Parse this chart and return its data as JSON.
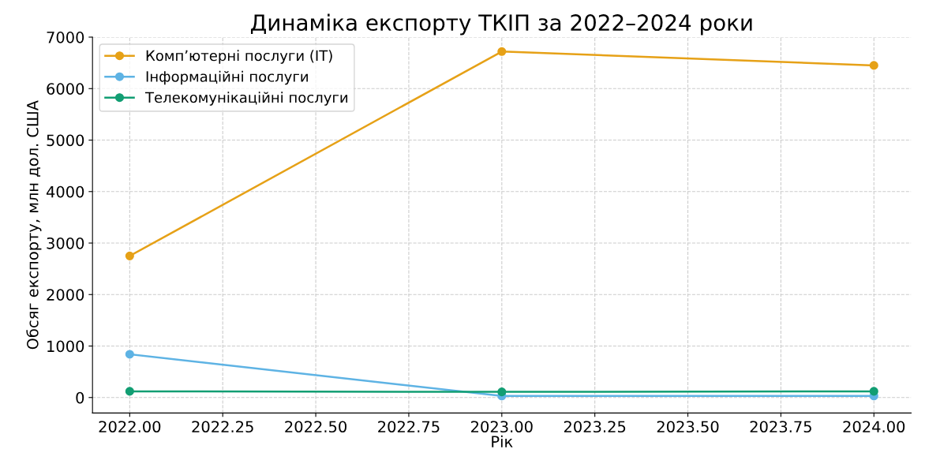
{
  "chart_data": {
    "type": "line",
    "title": "Динаміка експорту ТКІП за 2022–2024 роки",
    "xlabel": "Рік",
    "ylabel": "Обсяг експорту, млн дол. США",
    "x": [
      2022,
      2023,
      2024
    ],
    "series": [
      {
        "name": "Комп’ютерні послуги (IT)",
        "color": "#e6a117",
        "values": [
          2750,
          6720,
          6450
        ]
      },
      {
        "name": "Інформаційні послуги",
        "color": "#5eb3e4",
        "values": [
          840,
          30,
          30
        ]
      },
      {
        "name": "Телекомунікаційні послуги",
        "color": "#129e73",
        "values": [
          120,
          110,
          120
        ]
      }
    ],
    "xlim": [
      2021.9,
      2024.1
    ],
    "ylim": [
      -300,
      7000
    ],
    "xticks": [
      {
        "value": 2022,
        "label": "2022.00"
      },
      {
        "value": 2022.25,
        "label": "2022.25"
      },
      {
        "value": 2022.5,
        "label": "2022.50"
      },
      {
        "value": 2022.75,
        "label": "2022.75"
      },
      {
        "value": 2023,
        "label": "2023.00"
      },
      {
        "value": 2023.25,
        "label": "2023.25"
      },
      {
        "value": 2023.5,
        "label": "2023.50"
      },
      {
        "value": 2023.75,
        "label": "2023.75"
      },
      {
        "value": 2024,
        "label": "2024.00"
      }
    ],
    "yticks": [
      0,
      1000,
      2000,
      3000,
      4000,
      5000,
      6000,
      7000
    ],
    "grid": true,
    "legend": "top left",
    "marker": "circle",
    "line_style": "solid"
  }
}
